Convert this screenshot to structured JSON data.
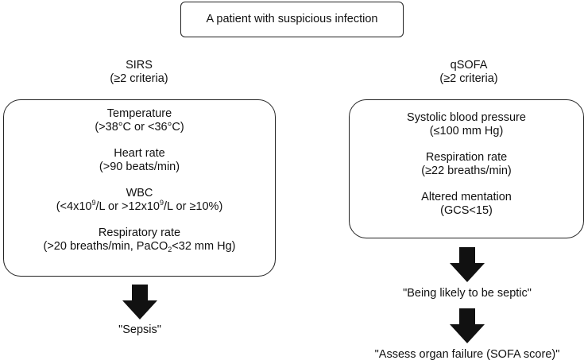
{
  "top": {
    "label": "A patient with suspicious infection"
  },
  "sirs": {
    "title": "SIRS",
    "subtitle": "(≥2 criteria)",
    "criteria": {
      "temperature": {
        "name": "Temperature",
        "detail": "(>38°C or <36°C)"
      },
      "heart_rate": {
        "name": "Heart rate",
        "detail": "(>90 beats/min)"
      },
      "wbc": {
        "name": "WBC",
        "d1": "(<4x10",
        "exp1": "9",
        "d2": "/L or >12x10",
        "exp2": "9",
        "d3": "/L or ≥10%)"
      },
      "respiratory_rate": {
        "name": "Respiratory rate",
        "d1": "(>20 breaths/min, PaCO",
        "sub": "2",
        "d2": "<32 mm Hg)"
      }
    },
    "outcome": "\"Sepsis\""
  },
  "qsofa": {
    "title": "qSOFA",
    "subtitle": "(≥2 criteria)",
    "criteria": {
      "systolic": {
        "name": "Systolic blood pressure",
        "detail": "(≤100 mm Hg)"
      },
      "respiration": {
        "name": "Respiration rate",
        "detail": "(≥22 breaths/min)"
      },
      "mentation": {
        "name": "Altered mentation",
        "detail": "(GCS<15)"
      }
    },
    "outcome1": "\"Being likely to be septic\"",
    "outcome2": "\"Assess organ failure (SOFA score)\""
  },
  "colors": {
    "arrow": "#111111",
    "border": "#222222"
  }
}
